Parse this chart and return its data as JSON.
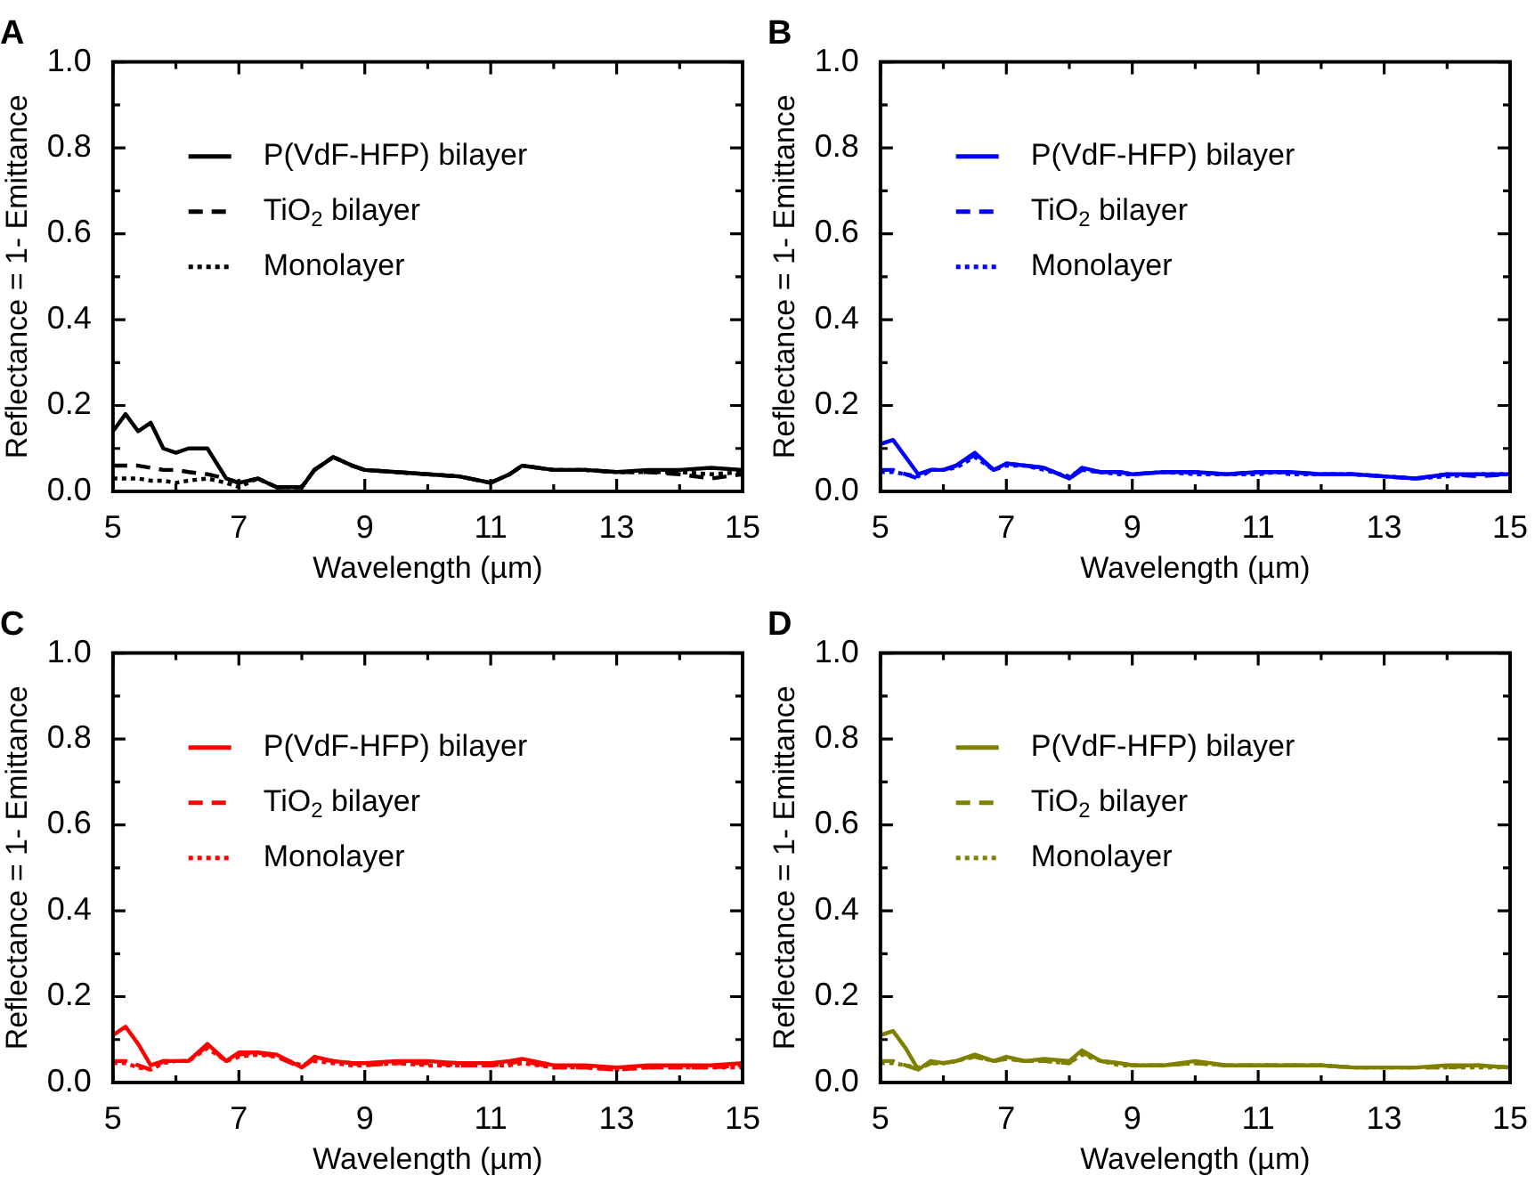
{
  "chart_data": [
    {
      "type": "line",
      "title": "A",
      "xlabel": "Wavelength (µm)",
      "ylabel": "Reflectance = 1- Emittance",
      "xlim": [
        5,
        15
      ],
      "ylim": [
        0,
        1.0
      ],
      "grid": false,
      "legend": "top left",
      "marker": "none",
      "xticks": [
        5,
        {
          "value": 6,
          "label": null
        },
        7,
        {
          "value": 8,
          "label": null
        },
        9,
        {
          "value": 10,
          "label": null
        },
        11,
        {
          "value": 12,
          "label": null
        },
        13,
        {
          "value": 14,
          "label": null
        },
        15
      ],
      "yticks": [
        {
          "value": 0,
          "label": "0.0"
        },
        {
          "value": 0.1,
          "label": null
        },
        0.2,
        {
          "value": 0.3,
          "label": null
        },
        0.4,
        {
          "value": 0.5,
          "label": null
        },
        0.6,
        {
          "value": 0.7,
          "label": null
        },
        0.8,
        {
          "value": 0.9,
          "label": null
        },
        {
          "value": 1,
          "label": "1.0"
        }
      ],
      "x": [
        5,
        5.2,
        5.4,
        5.6,
        5.8,
        6,
        6.2,
        6.5,
        6.8,
        7,
        7.3,
        7.6,
        8,
        8.2,
        8.5,
        8.8,
        9,
        9.5,
        10,
        10.5,
        11,
        11.3,
        11.5,
        12,
        12.5,
        13,
        13.5,
        14,
        14.5,
        15
      ],
      "series": [
        {
          "name": "P(VdF-HFP) bilayer",
          "color": "#000000",
          "line_style": "solid",
          "values": [
            0.14,
            0.18,
            0.14,
            0.16,
            0.1,
            0.09,
            0.1,
            0.1,
            0.03,
            0.02,
            0.03,
            0.01,
            0.01,
            0.05,
            0.08,
            0.06,
            0.05,
            0.045,
            0.04,
            0.035,
            0.02,
            0.04,
            0.06,
            0.05,
            0.05,
            0.045,
            0.05,
            0.05,
            0.055,
            0.05
          ]
        },
        {
          "name": "TiO$_{2}$ bilayer",
          "color": "#000000",
          "line_style": "dashed",
          "values": [
            0.06,
            0.06,
            0.06,
            0.055,
            0.05,
            0.05,
            0.045,
            0.04,
            0.03,
            0.02,
            0.03,
            0.01,
            0.01,
            0.05,
            0.08,
            0.06,
            0.05,
            0.045,
            0.04,
            0.035,
            0.02,
            0.04,
            0.06,
            0.05,
            0.05,
            0.045,
            0.045,
            0.04,
            0.03,
            0.04
          ]
        },
        {
          "name": "Monolayer",
          "color": "#000000",
          "line_style": "dotted",
          "values": [
            0.03,
            0.03,
            0.03,
            0.025,
            0.025,
            0.02,
            0.025,
            0.03,
            0.02,
            0.01,
            0.03,
            0.01,
            0.01,
            0.05,
            0.08,
            0.06,
            0.05,
            0.045,
            0.04,
            0.035,
            0.02,
            0.04,
            0.06,
            0.05,
            0.05,
            0.045,
            0.045,
            0.045,
            0.04,
            0.045
          ]
        }
      ]
    },
    {
      "type": "line",
      "title": "B",
      "xlabel": "Wavelength (µm)",
      "ylabel": "Reflectance = 1- Emittance",
      "xlim": [
        5,
        15
      ],
      "ylim": [
        0,
        1.0
      ],
      "grid": false,
      "legend": "top left",
      "marker": "none",
      "xticks": [
        5,
        {
          "value": 6,
          "label": null
        },
        7,
        {
          "value": 8,
          "label": null
        },
        9,
        {
          "value": 10,
          "label": null
        },
        11,
        {
          "value": 12,
          "label": null
        },
        13,
        {
          "value": 14,
          "label": null
        },
        15
      ],
      "yticks": [
        {
          "value": 0,
          "label": "0.0"
        },
        {
          "value": 0.1,
          "label": null
        },
        0.2,
        {
          "value": 0.3,
          "label": null
        },
        0.4,
        {
          "value": 0.5,
          "label": null
        },
        0.6,
        {
          "value": 0.7,
          "label": null
        },
        0.8,
        {
          "value": 0.9,
          "label": null
        },
        {
          "value": 1,
          "label": "1.0"
        }
      ],
      "x": [
        5,
        5.2,
        5.4,
        5.6,
        5.8,
        6,
        6.2,
        6.5,
        6.8,
        7,
        7.3,
        7.6,
        8,
        8.2,
        8.5,
        8.8,
        9,
        9.5,
        10,
        10.5,
        11,
        11.3,
        11.5,
        12,
        12.5,
        13,
        13.5,
        14,
        14.5,
        15
      ],
      "series": [
        {
          "name": "P(VdF-HFP) bilayer",
          "color": "#0000ff",
          "line_style": "solid",
          "values": [
            0.11,
            0.12,
            0.08,
            0.04,
            0.05,
            0.05,
            0.06,
            0.09,
            0.05,
            0.065,
            0.06,
            0.055,
            0.03,
            0.055,
            0.045,
            0.045,
            0.04,
            0.045,
            0.045,
            0.04,
            0.045,
            0.045,
            0.045,
            0.04,
            0.04,
            0.035,
            0.03,
            0.04,
            0.04,
            0.04
          ]
        },
        {
          "name": "TiO$_{2}$ bilayer",
          "color": "#0000ff",
          "line_style": "dashed",
          "values": [
            0.05,
            0.05,
            0.04,
            0.03,
            0.05,
            0.05,
            0.06,
            0.085,
            0.05,
            0.065,
            0.06,
            0.055,
            0.03,
            0.05,
            0.045,
            0.045,
            0.04,
            0.045,
            0.045,
            0.04,
            0.045,
            0.045,
            0.045,
            0.04,
            0.04,
            0.035,
            0.03,
            0.04,
            0.035,
            0.04
          ]
        },
        {
          "name": "Monolayer",
          "color": "#0000ff",
          "line_style": "dotted",
          "values": [
            0.045,
            0.045,
            0.04,
            0.035,
            0.05,
            0.05,
            0.055,
            0.08,
            0.05,
            0.06,
            0.06,
            0.05,
            0.035,
            0.05,
            0.045,
            0.04,
            0.04,
            0.045,
            0.04,
            0.04,
            0.04,
            0.045,
            0.04,
            0.04,
            0.04,
            0.035,
            0.03,
            0.035,
            0.04,
            0.04
          ]
        }
      ]
    },
    {
      "type": "line",
      "title": "C",
      "xlabel": "Wavelength (µm)",
      "ylabel": "Reflectance = 1- Emittance",
      "xlim": [
        5,
        15
      ],
      "ylim": [
        0,
        1.0
      ],
      "grid": false,
      "legend": "top left",
      "marker": "none",
      "xticks": [
        5,
        {
          "value": 6,
          "label": null
        },
        7,
        {
          "value": 8,
          "label": null
        },
        9,
        {
          "value": 10,
          "label": null
        },
        11,
        {
          "value": 12,
          "label": null
        },
        13,
        {
          "value": 14,
          "label": null
        },
        15
      ],
      "yticks": [
        {
          "value": 0,
          "label": "0.0"
        },
        {
          "value": 0.1,
          "label": null
        },
        0.2,
        {
          "value": 0.3,
          "label": null
        },
        0.4,
        {
          "value": 0.5,
          "label": null
        },
        0.6,
        {
          "value": 0.7,
          "label": null
        },
        0.8,
        {
          "value": 0.9,
          "label": null
        },
        {
          "value": 1,
          "label": "1.0"
        }
      ],
      "x": [
        5,
        5.2,
        5.4,
        5.6,
        5.8,
        6,
        6.2,
        6.5,
        6.8,
        7,
        7.3,
        7.6,
        8,
        8.2,
        8.5,
        8.8,
        9,
        9.5,
        10,
        10.5,
        11,
        11.3,
        11.5,
        12,
        12.5,
        13,
        13.5,
        14,
        14.5,
        15
      ],
      "series": [
        {
          "name": "P(VdF-HFP) bilayer",
          "color": "#ff0000",
          "line_style": "solid",
          "values": [
            0.11,
            0.13,
            0.09,
            0.04,
            0.05,
            0.05,
            0.05,
            0.09,
            0.05,
            0.07,
            0.07,
            0.065,
            0.035,
            0.06,
            0.05,
            0.045,
            0.045,
            0.05,
            0.05,
            0.045,
            0.045,
            0.05,
            0.055,
            0.04,
            0.04,
            0.035,
            0.04,
            0.04,
            0.04,
            0.045
          ]
        },
        {
          "name": "TiO$_{2}$ bilayer",
          "color": "#ff0000",
          "line_style": "dashed",
          "values": [
            0.05,
            0.05,
            0.04,
            0.03,
            0.05,
            0.05,
            0.05,
            0.085,
            0.05,
            0.065,
            0.07,
            0.06,
            0.035,
            0.055,
            0.05,
            0.045,
            0.04,
            0.045,
            0.045,
            0.04,
            0.04,
            0.045,
            0.05,
            0.035,
            0.035,
            0.03,
            0.035,
            0.035,
            0.035,
            0.04
          ]
        },
        {
          "name": "Monolayer",
          "color": "#ff0000",
          "line_style": "dotted",
          "values": [
            0.045,
            0.045,
            0.035,
            0.03,
            0.045,
            0.05,
            0.05,
            0.08,
            0.05,
            0.06,
            0.065,
            0.06,
            0.04,
            0.05,
            0.045,
            0.04,
            0.04,
            0.045,
            0.04,
            0.04,
            0.04,
            0.04,
            0.045,
            0.035,
            0.035,
            0.03,
            0.035,
            0.035,
            0.035,
            0.035
          ]
        }
      ]
    },
    {
      "type": "line",
      "title": "D",
      "xlabel": "Wavelength (µm)",
      "ylabel": "Reflectance = 1- Emittance",
      "xlim": [
        5,
        15
      ],
      "ylim": [
        0,
        1.0
      ],
      "grid": false,
      "legend": "top left",
      "marker": "none",
      "xticks": [
        5,
        {
          "value": 6,
          "label": null
        },
        7,
        {
          "value": 8,
          "label": null
        },
        9,
        {
          "value": 10,
          "label": null
        },
        11,
        {
          "value": 12,
          "label": null
        },
        13,
        {
          "value": 14,
          "label": null
        },
        15
      ],
      "yticks": [
        {
          "value": 0,
          "label": "0.0"
        },
        {
          "value": 0.1,
          "label": null
        },
        0.2,
        {
          "value": 0.3,
          "label": null
        },
        0.4,
        {
          "value": 0.5,
          "label": null
        },
        0.6,
        {
          "value": 0.7,
          "label": null
        },
        0.8,
        {
          "value": 0.9,
          "label": null
        },
        {
          "value": 1,
          "label": "1.0"
        }
      ],
      "x": [
        5,
        5.2,
        5.4,
        5.6,
        5.8,
        6,
        6.2,
        6.5,
        6.8,
        7,
        7.3,
        7.6,
        8,
        8.2,
        8.5,
        8.8,
        9,
        9.5,
        10,
        10.5,
        11,
        11.3,
        11.5,
        12,
        12.5,
        13,
        13.5,
        14,
        14.5,
        15
      ],
      "series": [
        {
          "name": "P(VdF-HFP) bilayer",
          "color": "#808000",
          "line_style": "solid",
          "values": [
            0.11,
            0.12,
            0.08,
            0.03,
            0.05,
            0.045,
            0.05,
            0.065,
            0.05,
            0.06,
            0.05,
            0.055,
            0.05,
            0.075,
            0.05,
            0.045,
            0.04,
            0.04,
            0.05,
            0.04,
            0.04,
            0.04,
            0.04,
            0.04,
            0.035,
            0.035,
            0.035,
            0.04,
            0.04,
            0.035
          ]
        },
        {
          "name": "TiO$_{2}$ bilayer",
          "color": "#808000",
          "line_style": "dashed",
          "values": [
            0.05,
            0.05,
            0.04,
            0.03,
            0.045,
            0.045,
            0.05,
            0.06,
            0.05,
            0.055,
            0.05,
            0.05,
            0.045,
            0.07,
            0.05,
            0.045,
            0.04,
            0.04,
            0.045,
            0.04,
            0.04,
            0.04,
            0.04,
            0.04,
            0.035,
            0.035,
            0.035,
            0.035,
            0.04,
            0.035
          ]
        },
        {
          "name": "Monolayer",
          "color": "#808000",
          "line_style": "dotted",
          "values": [
            0.045,
            0.045,
            0.04,
            0.035,
            0.045,
            0.045,
            0.05,
            0.06,
            0.05,
            0.055,
            0.05,
            0.05,
            0.045,
            0.065,
            0.05,
            0.04,
            0.04,
            0.04,
            0.045,
            0.04,
            0.04,
            0.04,
            0.04,
            0.04,
            0.035,
            0.035,
            0.035,
            0.035,
            0.035,
            0.035
          ]
        }
      ]
    }
  ]
}
